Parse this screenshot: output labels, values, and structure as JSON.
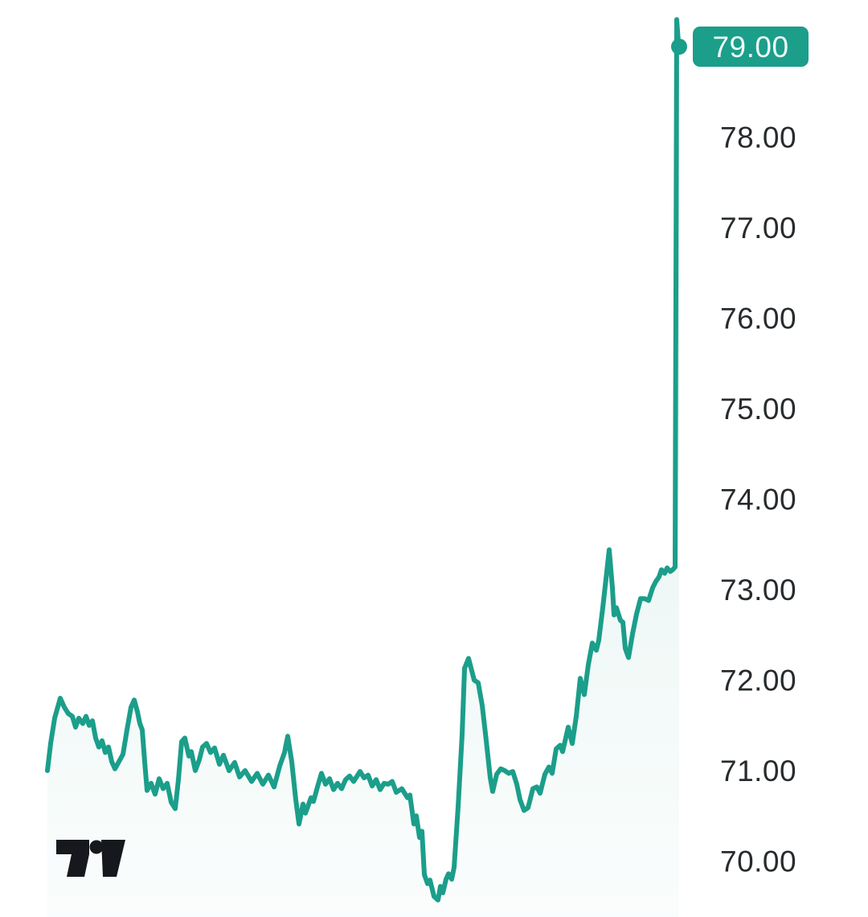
{
  "widget": {
    "kind": "mini price chart",
    "background": "#ffffff"
  },
  "colors": {
    "line": "#1b9e8a",
    "area_top_opacity": 0.26,
    "area_bottom_opacity": 0.02,
    "axis_text": "#262b2e",
    "badge_bg": "#1b9e8a",
    "badge_text": "#eefaf7",
    "logo": "#16181d"
  },
  "chart_data": {
    "type": "area",
    "title": "",
    "xlabel": "",
    "ylabel": "",
    "grid": false,
    "legend": false,
    "y_axis": {
      "side": "right",
      "range": [
        69.45,
        79.55
      ],
      "ticks": [
        {
          "label": "78.00",
          "value": 78
        },
        {
          "label": "77.00",
          "value": 77
        },
        {
          "label": "76.00",
          "value": 76
        },
        {
          "label": "75.00",
          "value": 75
        },
        {
          "label": "74.00",
          "value": 74
        },
        {
          "label": "73.00",
          "value": 73
        },
        {
          "label": "72.00",
          "value": 72
        },
        {
          "label": "71.00",
          "value": 71
        },
        {
          "label": "70.00",
          "value": 70
        }
      ]
    },
    "x_axis": {
      "visible": false
    },
    "last_price": {
      "label": "79.00",
      "value": 79.0
    },
    "series": [
      {
        "name": "price",
        "points": [
          [
            0,
            71.0
          ],
          [
            0.51,
            71.3
          ],
          [
            1.15,
            71.58
          ],
          [
            2.04,
            71.8
          ],
          [
            2.67,
            71.7
          ],
          [
            3.31,
            71.63
          ],
          [
            3.94,
            71.6
          ],
          [
            4.45,
            71.48
          ],
          [
            4.96,
            71.58
          ],
          [
            5.6,
            71.52
          ],
          [
            6.11,
            71.6
          ],
          [
            6.62,
            71.5
          ],
          [
            7.12,
            71.55
          ],
          [
            7.63,
            71.36
          ],
          [
            8.14,
            71.26
          ],
          [
            8.65,
            71.33
          ],
          [
            9.16,
            71.2
          ],
          [
            9.67,
            71.26
          ],
          [
            10.18,
            71.1
          ],
          [
            10.69,
            71.02
          ],
          [
            11.32,
            71.1
          ],
          [
            11.96,
            71.18
          ],
          [
            12.6,
            71.45
          ],
          [
            13.23,
            71.7
          ],
          [
            13.74,
            71.78
          ],
          [
            14.25,
            71.65
          ],
          [
            14.63,
            71.52
          ],
          [
            15.01,
            71.45
          ],
          [
            15.39,
            71.1
          ],
          [
            15.78,
            70.78
          ],
          [
            16.41,
            70.86
          ],
          [
            17.05,
            70.74
          ],
          [
            17.68,
            70.91
          ],
          [
            18.32,
            70.8
          ],
          [
            18.96,
            70.86
          ],
          [
            19.59,
            70.65
          ],
          [
            20.23,
            70.58
          ],
          [
            20.74,
            70.9
          ],
          [
            21.25,
            71.32
          ],
          [
            21.76,
            71.36
          ],
          [
            22.39,
            71.16
          ],
          [
            22.77,
            71.21
          ],
          [
            23.41,
            71.0
          ],
          [
            24.04,
            71.12
          ],
          [
            24.55,
            71.26
          ],
          [
            25.19,
            71.3
          ],
          [
            25.83,
            71.2
          ],
          [
            26.46,
            71.25
          ],
          [
            27.23,
            71.07
          ],
          [
            27.86,
            71.17
          ],
          [
            28.75,
            71.0
          ],
          [
            29.64,
            71.09
          ],
          [
            30.41,
            70.93
          ],
          [
            31.3,
            71.0
          ],
          [
            32.32,
            70.88
          ],
          [
            33.21,
            70.97
          ],
          [
            34.1,
            70.85
          ],
          [
            34.99,
            70.95
          ],
          [
            35.88,
            70.82
          ],
          [
            36.77,
            71.05
          ],
          [
            37.53,
            71.2
          ],
          [
            38.04,
            71.38
          ],
          [
            38.68,
            71.1
          ],
          [
            39.31,
            70.68
          ],
          [
            39.82,
            70.41
          ],
          [
            40.46,
            70.63
          ],
          [
            40.84,
            70.53
          ],
          [
            41.73,
            70.7
          ],
          [
            42.11,
            70.66
          ],
          [
            42.75,
            70.82
          ],
          [
            43.38,
            70.97
          ],
          [
            44.02,
            70.85
          ],
          [
            44.66,
            70.91
          ],
          [
            45.29,
            70.79
          ],
          [
            45.93,
            70.86
          ],
          [
            46.56,
            70.8
          ],
          [
            47.2,
            70.9
          ],
          [
            47.84,
            70.94
          ],
          [
            48.47,
            70.88
          ],
          [
            49.49,
            70.99
          ],
          [
            50.13,
            70.92
          ],
          [
            50.76,
            70.95
          ],
          [
            51.4,
            70.83
          ],
          [
            52.04,
            70.9
          ],
          [
            52.67,
            70.79
          ],
          [
            53.31,
            70.86
          ],
          [
            53.94,
            70.85
          ],
          [
            54.58,
            70.88
          ],
          [
            55.22,
            70.76
          ],
          [
            56.11,
            70.8
          ],
          [
            57.0,
            70.7
          ],
          [
            57.38,
            70.73
          ],
          [
            58.02,
            70.41
          ],
          [
            58.4,
            70.5
          ],
          [
            58.91,
            70.26
          ],
          [
            59.29,
            70.33
          ],
          [
            59.67,
            69.85
          ],
          [
            60.18,
            69.75
          ],
          [
            60.56,
            69.79
          ],
          [
            61.2,
            69.61
          ],
          [
            61.83,
            69.57
          ],
          [
            62.21,
            69.72
          ],
          [
            62.6,
            69.65
          ],
          [
            63.1,
            69.8
          ],
          [
            63.49,
            69.86
          ],
          [
            64.0,
            69.8
          ],
          [
            64.38,
            69.93
          ],
          [
            65.01,
            70.6
          ],
          [
            65.65,
            71.4
          ],
          [
            66.03,
            72.13
          ],
          [
            66.67,
            72.24
          ],
          [
            67.56,
            72.0
          ],
          [
            68.19,
            71.97
          ],
          [
            68.83,
            71.72
          ],
          [
            69.47,
            71.33
          ],
          [
            70.1,
            70.92
          ],
          [
            70.48,
            70.77
          ],
          [
            71.12,
            70.96
          ],
          [
            71.76,
            71.02
          ],
          [
            72.39,
            71.0
          ],
          [
            73.03,
            70.97
          ],
          [
            73.66,
            70.99
          ],
          [
            74.3,
            70.85
          ],
          [
            74.81,
            70.68
          ],
          [
            75.45,
            70.56
          ],
          [
            76.08,
            70.59
          ],
          [
            76.84,
            70.8
          ],
          [
            77.48,
            70.82
          ],
          [
            77.99,
            70.75
          ],
          [
            78.75,
            70.96
          ],
          [
            79.39,
            71.04
          ],
          [
            79.9,
            70.97
          ],
          [
            80.53,
            71.24
          ],
          [
            81.17,
            71.28
          ],
          [
            81.55,
            71.21
          ],
          [
            82.44,
            71.48
          ],
          [
            83.08,
            71.3
          ],
          [
            83.72,
            71.6
          ],
          [
            84.35,
            72.02
          ],
          [
            84.99,
            71.84
          ],
          [
            85.62,
            72.17
          ],
          [
            86.26,
            72.41
          ],
          [
            86.9,
            72.33
          ],
          [
            87.28,
            72.44
          ],
          [
            87.91,
            72.8
          ],
          [
            88.55,
            73.2
          ],
          [
            88.93,
            73.44
          ],
          [
            89.44,
            73.02
          ],
          [
            89.69,
            72.72
          ],
          [
            90.08,
            72.8
          ],
          [
            90.71,
            72.66
          ],
          [
            91.09,
            72.64
          ],
          [
            91.48,
            72.35
          ],
          [
            91.98,
            72.25
          ],
          [
            92.62,
            72.51
          ],
          [
            93.26,
            72.73
          ],
          [
            93.89,
            72.9
          ],
          [
            94.53,
            72.9
          ],
          [
            95.17,
            72.88
          ],
          [
            95.8,
            73.02
          ],
          [
            96.31,
            73.09
          ],
          [
            96.82,
            73.14
          ],
          [
            97.2,
            73.22
          ],
          [
            97.71,
            73.18
          ],
          [
            98.09,
            73.24
          ],
          [
            98.6,
            73.2
          ],
          [
            98.98,
            73.22
          ],
          [
            99.36,
            73.25
          ],
          [
            99.62,
            79.3
          ],
          [
            99.87,
            79.05
          ],
          [
            100,
            79.0
          ]
        ]
      }
    ]
  },
  "branding": {
    "name": "tradingview-logomark"
  }
}
